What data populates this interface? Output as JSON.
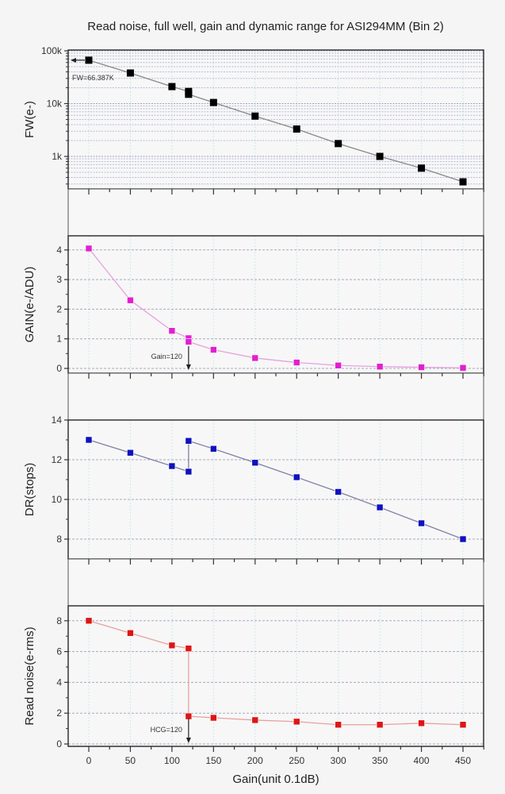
{
  "chart_data": {
    "type": "line",
    "title": "Read noise, full well, gain and dynamic range for ASI294MM (Bin 2)",
    "xlabel": "Gain(unit 0.1dB)",
    "x_ticks": [
      0,
      50,
      100,
      150,
      200,
      250,
      300,
      350,
      400,
      450
    ],
    "x_range": [
      -25,
      475
    ],
    "grid": true,
    "panels": [
      {
        "id": "fw",
        "ylabel": "FW(e-)",
        "scale": "log",
        "ylim": [
          240,
          100000
        ],
        "y_ticks": [
          1000,
          10000,
          100000
        ],
        "y_tick_labels": [
          "1k",
          "10k",
          "100k"
        ],
        "color": "#000000",
        "line_color": "#888888",
        "x": [
          0,
          50,
          100,
          120,
          120,
          150,
          200,
          250,
          300,
          350,
          400,
          450
        ],
        "values": [
          66387,
          38000,
          21000,
          17000,
          15000,
          10500,
          5800,
          3300,
          1750,
          1000,
          600,
          330
        ],
        "annotation": {
          "text": "FW=66.387K",
          "x": 0,
          "y": 66387
        }
      },
      {
        "id": "gain",
        "ylabel": "GAIN(e-/ADU)",
        "scale": "linear",
        "ylim": [
          -0.15,
          4.5
        ],
        "y_ticks": [
          0,
          1,
          2,
          3,
          4
        ],
        "y_tick_labels": [
          "0",
          "1",
          "2",
          "3",
          "4"
        ],
        "color": "#e020d0",
        "line_color": "#e8a0e0",
        "x": [
          0,
          50,
          100,
          120,
          120,
          150,
          200,
          250,
          300,
          350,
          400,
          450
        ],
        "values": [
          4.05,
          2.3,
          1.27,
          1.02,
          0.9,
          0.63,
          0.35,
          0.2,
          0.1,
          0.06,
          0.04,
          0.02
        ],
        "annotation": {
          "text": "Gain=120",
          "x": 120
        }
      },
      {
        "id": "dr",
        "ylabel": "DR(stops)",
        "scale": "linear",
        "ylim": [
          7,
          14
        ],
        "y_ticks": [
          8,
          10,
          12,
          14
        ],
        "y_tick_labels": [
          "8",
          "10",
          "12",
          "14"
        ],
        "color": "#1010c0",
        "line_color": "#8080a8",
        "x": [
          0,
          50,
          100,
          120,
          120,
          150,
          200,
          250,
          300,
          350,
          400,
          450
        ],
        "values": [
          13.0,
          12.35,
          11.68,
          11.4,
          12.95,
          12.55,
          11.85,
          11.12,
          10.38,
          9.6,
          8.8,
          8.0
        ]
      },
      {
        "id": "rn",
        "ylabel": "Read noise(e-rms)",
        "scale": "linear",
        "ylim": [
          0,
          9
        ],
        "y_ticks": [
          0,
          2,
          4,
          6,
          8
        ],
        "y_tick_labels": [
          "0",
          "2",
          "4",
          "6",
          "8"
        ],
        "color": "#dd1515",
        "line_color": "#e8a0a0",
        "x": [
          0,
          50,
          100,
          120,
          120,
          150,
          200,
          250,
          300,
          350,
          400,
          450
        ],
        "values": [
          8.0,
          7.2,
          6.4,
          6.2,
          1.8,
          1.7,
          1.55,
          1.45,
          1.25,
          1.25,
          1.35,
          1.25
        ],
        "annotation": {
          "text": "HCG=120",
          "x": 120
        }
      }
    ]
  }
}
